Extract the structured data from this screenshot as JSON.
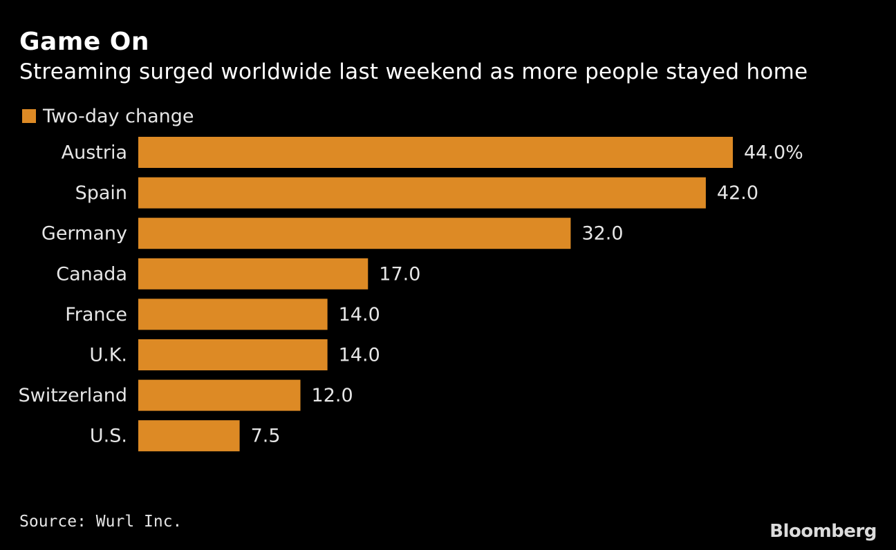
{
  "chart_data": {
    "type": "bar",
    "orientation": "horizontal",
    "title": "Game On",
    "subtitle": "Streaming surged worldwide last weekend as more people stayed home",
    "legend": "Two-day change",
    "categories": [
      "Austria",
      "Spain",
      "Germany",
      "Canada",
      "France",
      "U.K.",
      "Switzerland",
      "U.S."
    ],
    "values": [
      44.0,
      42.0,
      32.0,
      17.0,
      14.0,
      14.0,
      12.0,
      7.5
    ],
    "value_labels": [
      "44.0%",
      "42.0",
      "32.0",
      "17.0",
      "14.0",
      "14.0",
      "12.0",
      "7.5"
    ],
    "xlim": [
      0,
      44
    ],
    "unit": "%",
    "color": "#dd8a25",
    "grid": false,
    "xlabel": "",
    "ylabel": ""
  },
  "footer": {
    "source": "Source: Wurl Inc.",
    "brand": "Bloomberg"
  }
}
